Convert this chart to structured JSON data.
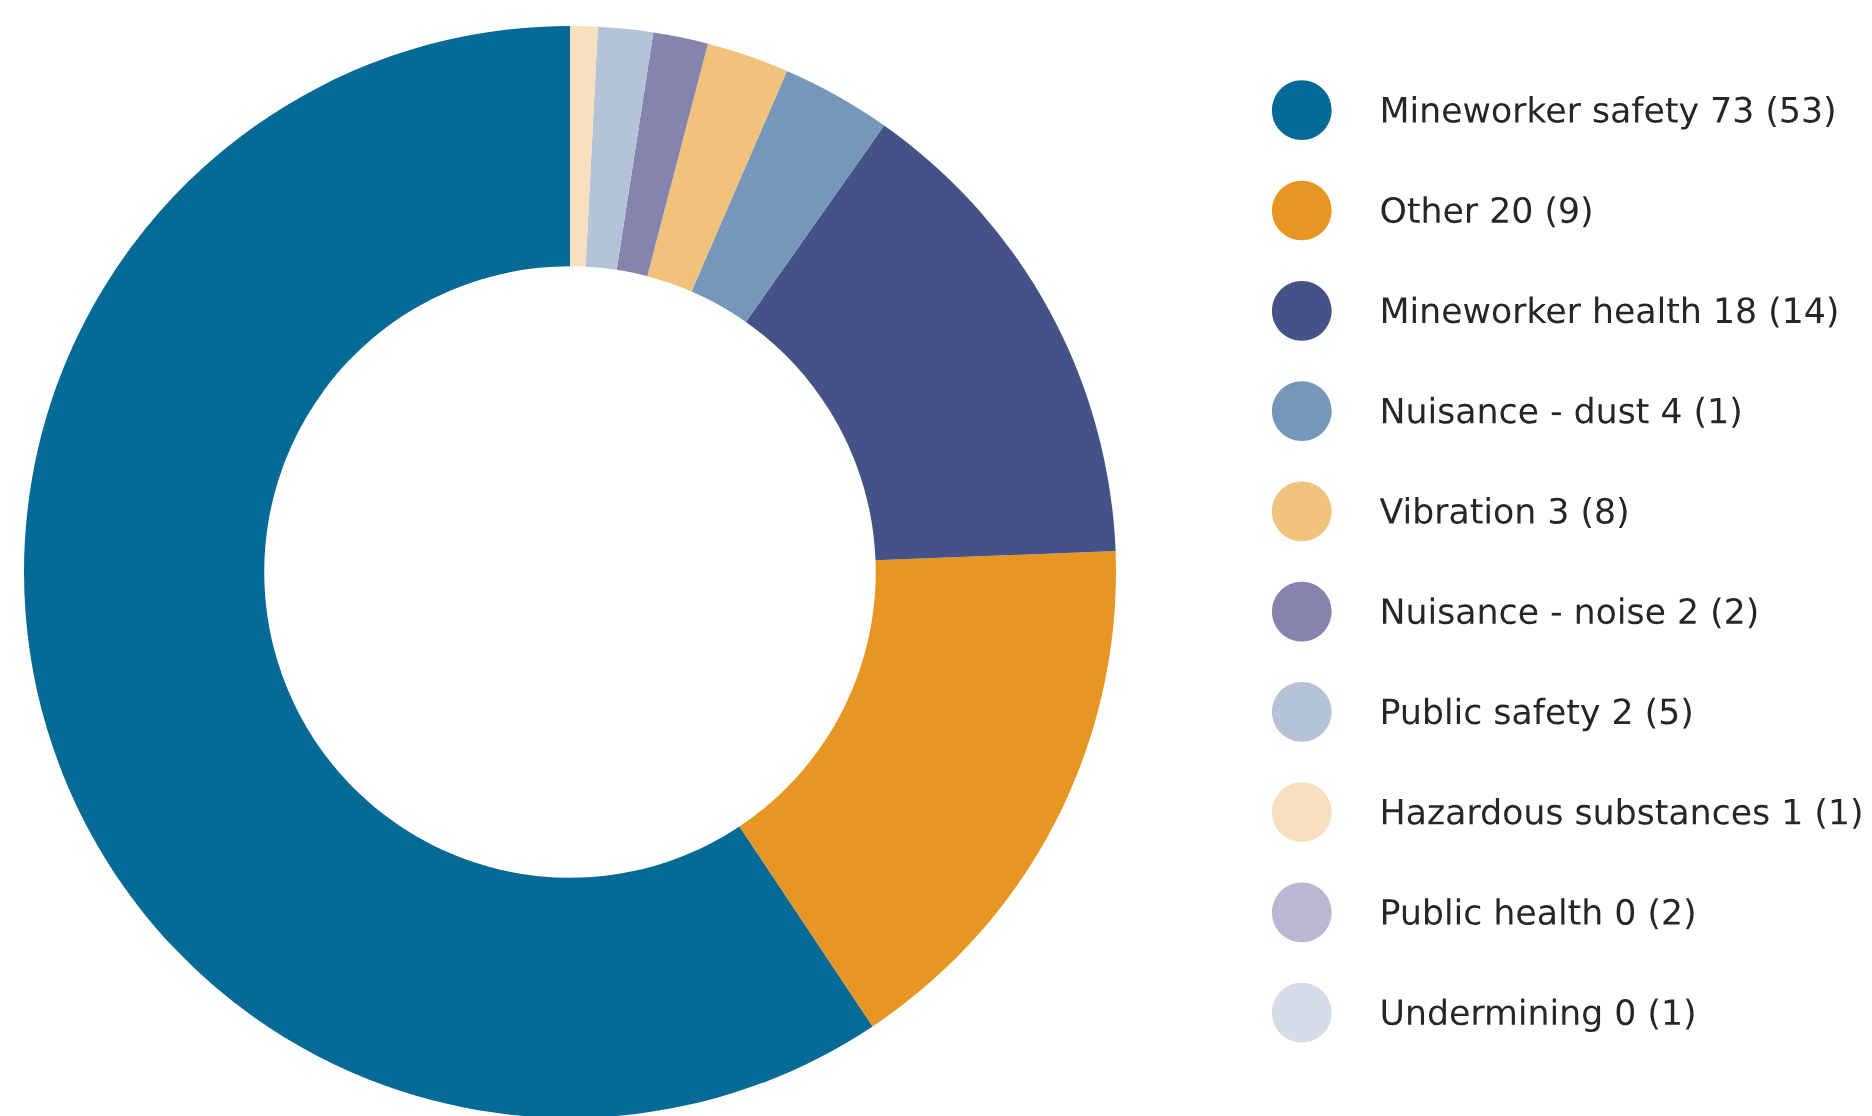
{
  "chart_data": {
    "type": "donut",
    "categories": [
      "Mineworker safety 73 (53)",
      "Other 20 (9)",
      "Mineworker health 18 (14)",
      "Nuisance - dust 4 (1)",
      "Vibration 3 (8)",
      "Nuisance - noise 2 (2)",
      "Public safety 2 (5)",
      "Hazardous substances 1 (1)",
      "Public health 0 (2)",
      "Undermining 0 (1)"
    ],
    "values": [
      73,
      20,
      18,
      4,
      3,
      2,
      2,
      1,
      0,
      0
    ],
    "colors": [
      "#066a96",
      "#e89623",
      "#455288",
      "#7697b9",
      "#f0c27b",
      "#8584ae",
      "#b5c3d7",
      "#f7dfbf",
      "#b9b7d2",
      "#d5dce7"
    ],
    "legend": "right"
  }
}
